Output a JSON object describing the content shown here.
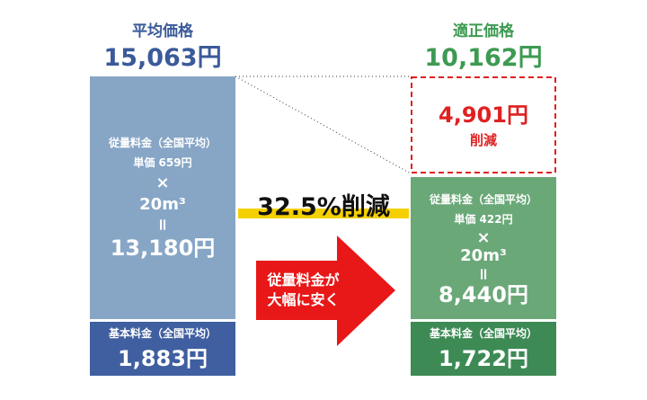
{
  "left": {
    "label": "平均価格",
    "total": "15,063円",
    "usage": {
      "title": "従量料金（全国平均）",
      "unit_price": "単価 659円",
      "times": "×",
      "volume": "20m³",
      "equals": "=",
      "amount": "13,180円"
    },
    "base": {
      "title": "基本料金（全国平均）",
      "amount": "1,883円"
    }
  },
  "right": {
    "label": "適正価格",
    "total": "10,162円",
    "saving": {
      "amount": "4,901円",
      "label": "削減"
    },
    "usage": {
      "title": "従量料金（全国平均）",
      "unit_price": "単価 422円",
      "times": "×",
      "volume": "20m³",
      "equals": "=",
      "amount": "8,440円"
    },
    "base": {
      "title": "基本料金（全国平均）",
      "amount": "1,722円"
    }
  },
  "reduction": "32.5%削減",
  "arrow": {
    "lines": [
      "従量料金が",
      "大幅に安く"
    ]
  }
}
